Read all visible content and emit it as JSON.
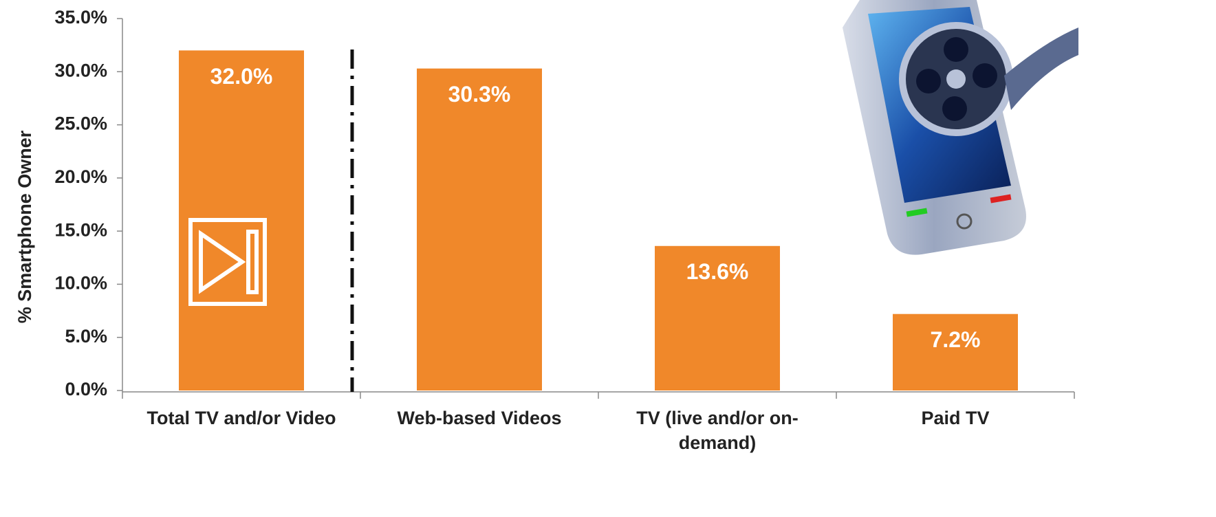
{
  "chart_data": {
    "type": "bar",
    "y_label": "% Smartphone Owner",
    "categories": [
      "Total TV and/or Video",
      "Web-based Videos",
      "TV (live and/or on-demand)",
      "Paid TV"
    ],
    "values": [
      32.0,
      30.3,
      13.6,
      7.2
    ],
    "value_labels": [
      "32.0%",
      "30.3%",
      "13.6%",
      "7.2%"
    ],
    "color": "#f0882a",
    "ylim": [
      0,
      35
    ],
    "yticks": [
      {
        "value": 0,
        "label": "0.0%"
      },
      {
        "value": 5,
        "label": "5.0%"
      },
      {
        "value": 10,
        "label": "10.0%"
      },
      {
        "value": 15,
        "label": "15.0%"
      },
      {
        "value": 20,
        "label": "20.0%"
      },
      {
        "value": 25,
        "label": "25.0%"
      },
      {
        "value": 30,
        "label": "30.0%"
      },
      {
        "value": 35,
        "label": "35.0%"
      }
    ]
  }
}
